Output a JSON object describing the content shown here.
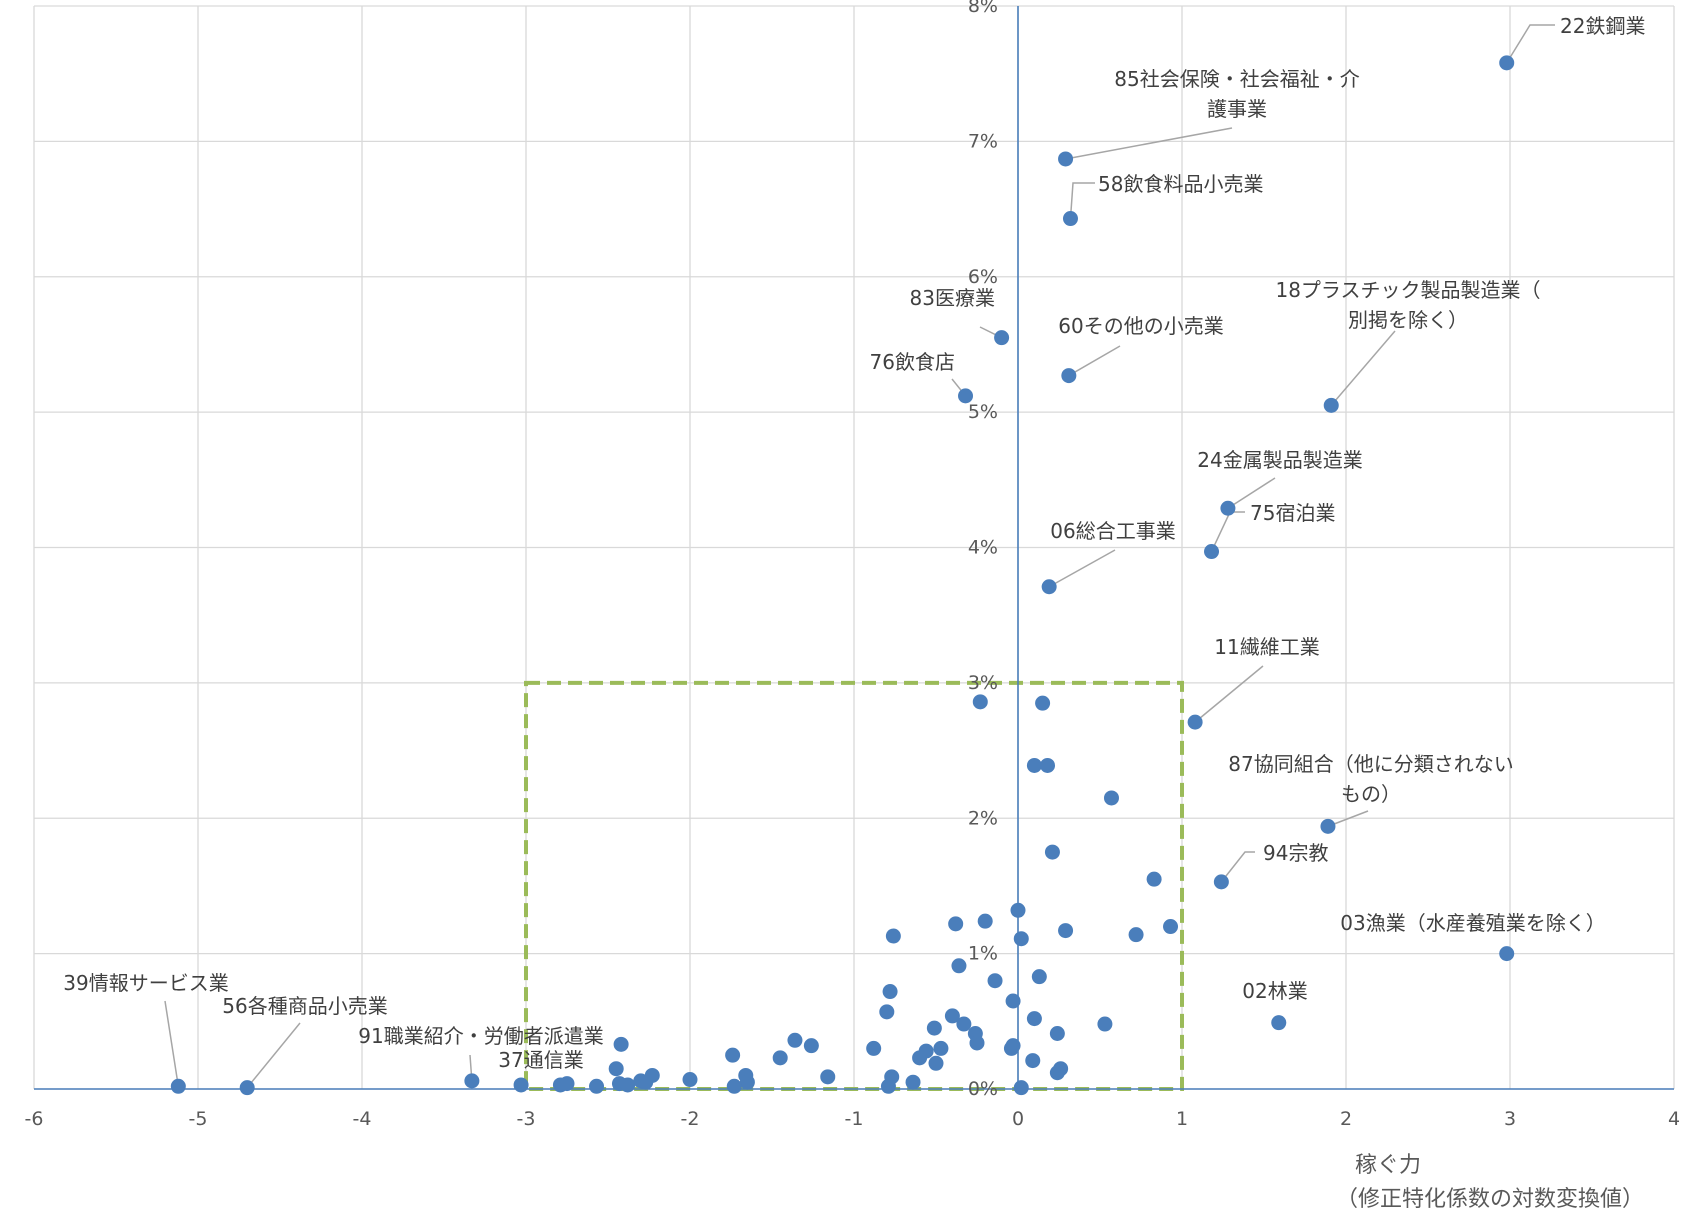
{
  "chart_data": {
    "type": "scatter",
    "title": "",
    "xlabel_lines": [
      "稼ぐ力",
      "（修正特化係数の対数変換値）"
    ],
    "ylabel": "",
    "xlim": [
      -6,
      4
    ],
    "ylim": [
      0,
      0.08
    ],
    "x_ticks": [
      -6,
      -5,
      -4,
      -3,
      -2,
      -1,
      0,
      1,
      2,
      3,
      4
    ],
    "y_ticks": [
      0,
      0.01,
      0.02,
      0.03,
      0.04,
      0.05,
      0.06,
      0.07,
      0.08
    ],
    "x_tick_labels": [
      "-6",
      "-5",
      "-4",
      "-3",
      "-2",
      "-1",
      "0",
      "1",
      "2",
      "3",
      "4"
    ],
    "y_tick_labels": [
      "0%",
      "1%",
      "2%",
      "3%",
      "4%",
      "5%",
      "6%",
      "7%",
      "8%"
    ],
    "grid": true,
    "marker_color": "#4a7ebb",
    "highlight_box": {
      "x": [
        -3,
        1
      ],
      "y": [
        0,
        0.03
      ],
      "color": "#9bbb59",
      "style": "dashed"
    },
    "labeled_points": [
      {
        "label": "22鉄鋼業",
        "x": 2.98,
        "y": 0.0758
      },
      {
        "label": "85社会保険・社会福祉・介護事業",
        "x": 0.29,
        "y": 0.0687
      },
      {
        "label": "58飲食料品小売業",
        "x": 0.32,
        "y": 0.0643
      },
      {
        "label": "83医療業",
        "x": -0.1,
        "y": 0.0555
      },
      {
        "label": "76飲食店",
        "x": -0.32,
        "y": 0.0512
      },
      {
        "label": "60その他の小売業",
        "x": 0.31,
        "y": 0.0527
      },
      {
        "label": "18プラスチック製品製造業（別掲を除く）",
        "x": 1.91,
        "y": 0.0505
      },
      {
        "label": "24金属製品製造業",
        "x": 1.28,
        "y": 0.0429
      },
      {
        "label": "75宿泊業",
        "x": 1.18,
        "y": 0.0397
      },
      {
        "label": "06総合工事業",
        "x": 0.19,
        "y": 0.0371
      },
      {
        "label": "11繊維工業",
        "x": 1.08,
        "y": 0.0271
      },
      {
        "label": "87協同組合（他に分類されないもの）",
        "x": 1.89,
        "y": 0.0194
      },
      {
        "label": "94宗教",
        "x": 1.24,
        "y": 0.0153
      },
      {
        "label": "03漁業（水産養殖業を除く）",
        "x": 2.98,
        "y": 0.01
      },
      {
        "label": "02林業",
        "x": 1.59,
        "y": 0.0049
      },
      {
        "label": "39情報サービス業",
        "x": -5.12,
        "y": 0.0002
      },
      {
        "label": "56各種商品小売業",
        "x": -4.7,
        "y": 0.0001
      },
      {
        "label": "91職業紹介・労働者派遣業",
        "x": -3.33,
        "y": 0.0006
      },
      {
        "label": "37通信業",
        "x": -3.03,
        "y": 0.0003
      }
    ],
    "points": [
      {
        "x": -0.23,
        "y": 0.0286
      },
      {
        "x": 0.15,
        "y": 0.0285
      },
      {
        "x": 0.1,
        "y": 0.0239
      },
      {
        "x": 0.18,
        "y": 0.0239
      },
      {
        "x": 0.57,
        "y": 0.0215
      },
      {
        "x": 0.21,
        "y": 0.0175
      },
      {
        "x": 0.83,
        "y": 0.0155
      },
      {
        "x": 0.0,
        "y": 0.0132
      },
      {
        "x": -0.2,
        "y": 0.0124
      },
      {
        "x": -0.38,
        "y": 0.0122
      },
      {
        "x": 0.93,
        "y": 0.012
      },
      {
        "x": 0.29,
        "y": 0.0117
      },
      {
        "x": 0.72,
        "y": 0.0114
      },
      {
        "x": -0.76,
        "y": 0.0113
      },
      {
        "x": 0.02,
        "y": 0.0111
      },
      {
        "x": -0.36,
        "y": 0.0091
      },
      {
        "x": 0.13,
        "y": 0.0083
      },
      {
        "x": -0.14,
        "y": 0.008
      },
      {
        "x": -0.78,
        "y": 0.0072
      },
      {
        "x": -0.03,
        "y": 0.0065
      },
      {
        "x": -0.8,
        "y": 0.0057
      },
      {
        "x": -0.4,
        "y": 0.0054
      },
      {
        "x": 0.1,
        "y": 0.0052
      },
      {
        "x": 0.53,
        "y": 0.0048
      },
      {
        "x": -0.33,
        "y": 0.0048
      },
      {
        "x": -0.51,
        "y": 0.0045
      },
      {
        "x": 0.24,
        "y": 0.0041
      },
      {
        "x": -0.26,
        "y": 0.0041
      },
      {
        "x": -1.36,
        "y": 0.0036
      },
      {
        "x": -2.42,
        "y": 0.0033
      },
      {
        "x": -0.25,
        "y": 0.0034
      },
      {
        "x": -1.26,
        "y": 0.0032
      },
      {
        "x": -0.03,
        "y": 0.0032
      },
      {
        "x": -0.04,
        "y": 0.003
      },
      {
        "x": -0.88,
        "y": 0.003
      },
      {
        "x": -0.56,
        "y": 0.0028
      },
      {
        "x": -0.47,
        "y": 0.003
      },
      {
        "x": -1.74,
        "y": 0.0025
      },
      {
        "x": -0.6,
        "y": 0.0023
      },
      {
        "x": -1.45,
        "y": 0.0023
      },
      {
        "x": 0.09,
        "y": 0.0021
      },
      {
        "x": -0.5,
        "y": 0.0019
      },
      {
        "x": 0.26,
        "y": 0.0015
      },
      {
        "x": -2.45,
        "y": 0.0015
      },
      {
        "x": 0.24,
        "y": 0.0012
      },
      {
        "x": -2.23,
        "y": 0.001
      },
      {
        "x": -1.66,
        "y": 0.001
      },
      {
        "x": -1.16,
        "y": 0.0009
      },
      {
        "x": -0.77,
        "y": 0.0009
      },
      {
        "x": -2.0,
        "y": 0.0007
      },
      {
        "x": -1.65,
        "y": 0.0005
      },
      {
        "x": -2.3,
        "y": 0.0006
      },
      {
        "x": -2.27,
        "y": 0.0005
      },
      {
        "x": -2.43,
        "y": 0.0004
      },
      {
        "x": -0.64,
        "y": 0.0005
      },
      {
        "x": -2.75,
        "y": 0.0004
      },
      {
        "x": -2.79,
        "y": 0.0003
      },
      {
        "x": -2.38,
        "y": 0.0003
      },
      {
        "x": -1.73,
        "y": 0.0002
      },
      {
        "x": -0.79,
        "y": 0.0002
      },
      {
        "x": -2.57,
        "y": 0.0002
      },
      {
        "x": 0.02,
        "y": 0.0001
      }
    ]
  }
}
